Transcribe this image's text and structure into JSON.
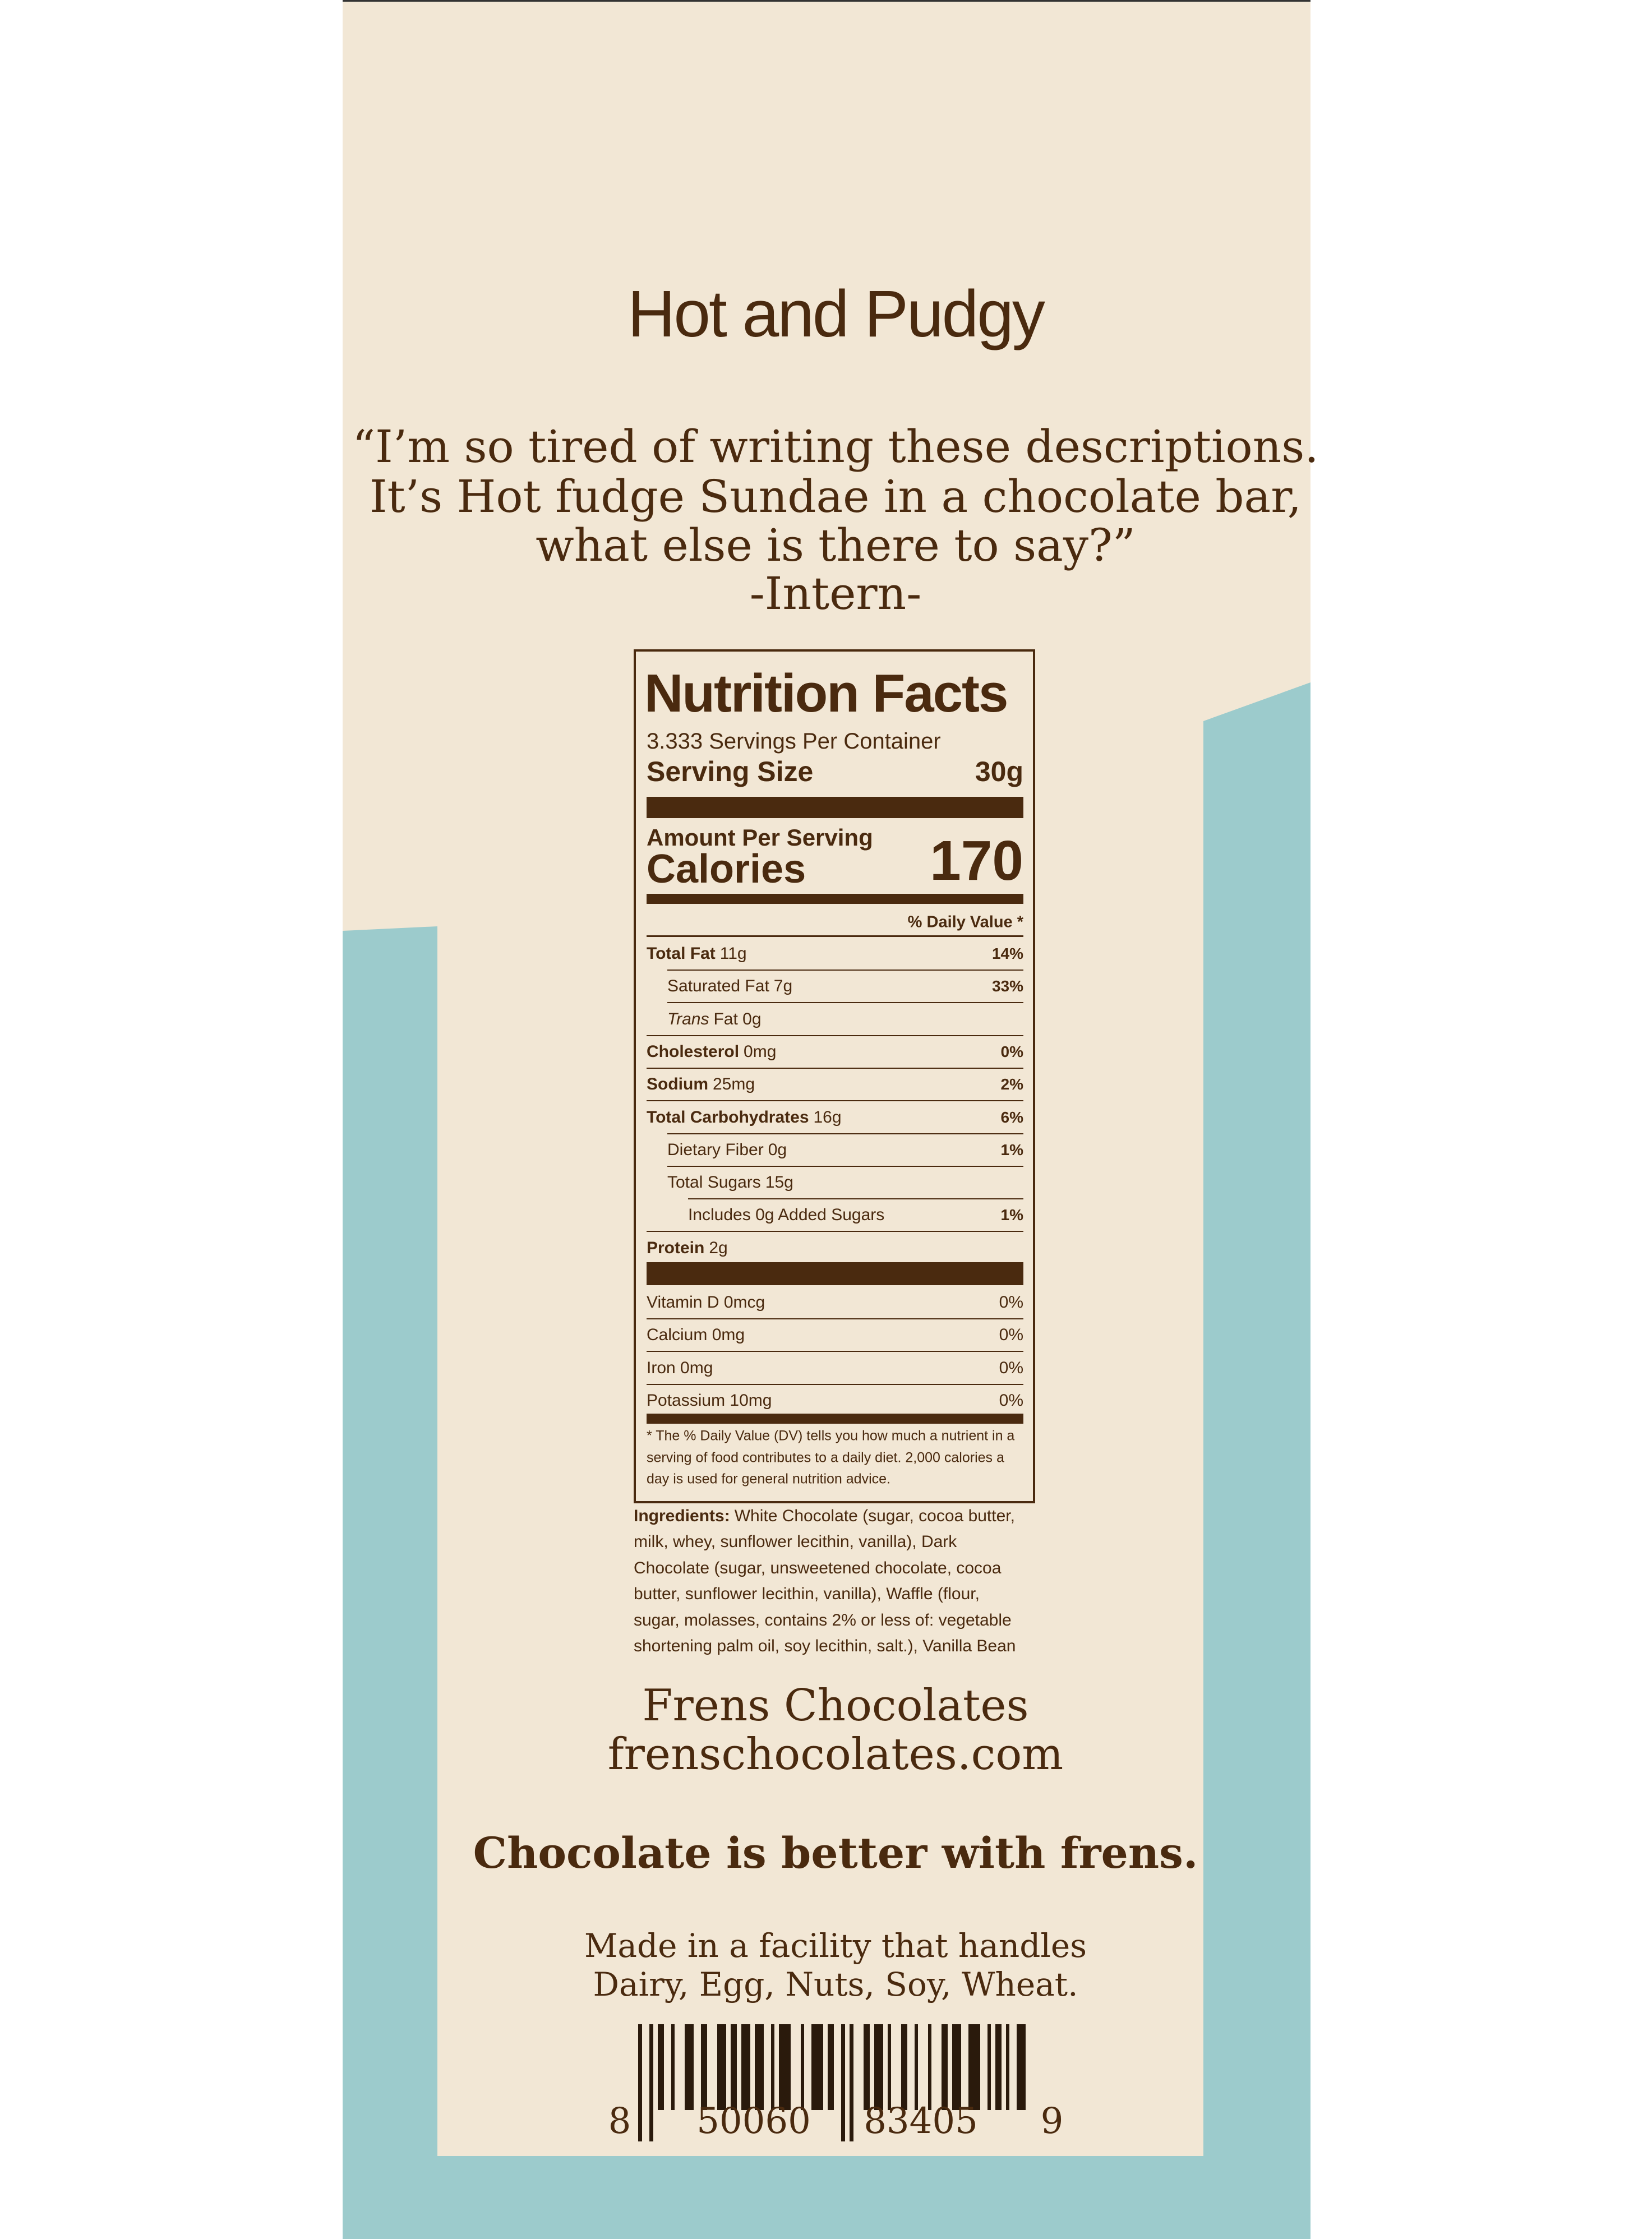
{
  "product_name": "Hot and Pudgy",
  "quote": [
    "“I’m so tired of writing these descriptions.",
    "It’s Hot fudge Sundae in a chocolate bar,",
    "what else is there to say?”",
    "-Intern-"
  ],
  "nutrition": {
    "title": "Nutrition Facts",
    "servings": "3.333 Servings Per Container",
    "serving_size": {
      "label": "Serving Size",
      "value": "30g"
    },
    "amount_per_serving": "Amount Per Serving",
    "calories": {
      "label": "Calories",
      "value": 170
    },
    "dv_header": "% Daily Value *",
    "rows": [
      {
        "name": "Total Fat",
        "amount": "11g",
        "dv": "14%"
      },
      {
        "name": "Saturated Fat",
        "amount": "7g",
        "dv": "33%"
      },
      {
        "name": "Trans",
        "amount": "Fat 0g",
        "dv": null
      },
      {
        "name": "Cholesterol",
        "amount": "0mg",
        "dv": "0%"
      },
      {
        "name": "Sodium",
        "amount": "25mg",
        "dv": "2%"
      },
      {
        "name": "Total Carbohydrates",
        "amount": "16g",
        "dv": "6%"
      },
      {
        "name": "Dietary Fiber",
        "amount": "0g",
        "dv": "1%"
      },
      {
        "name": "Total Sugars",
        "amount": "15g",
        "dv": null
      },
      {
        "name": "Includes 0g Added Sugars",
        "amount": null,
        "dv": "1%"
      },
      {
        "name": "Protein",
        "amount": "2g",
        "dv": null
      }
    ],
    "vitamins": [
      {
        "label": "Vitamin D 0mcg",
        "dv": "0%"
      },
      {
        "label": "Calcium 0mg",
        "dv": "0%"
      },
      {
        "label": "Iron 0mg",
        "dv": "0%"
      },
      {
        "label": "Potassium 10mg",
        "dv": "0%"
      }
    ],
    "footnote": [
      "* The % Daily Value (DV) tells you how much a nutrient in a",
      "serving of food contributes to a daily diet. 2,000 calories a",
      "day is used for general nutrition advice."
    ]
  },
  "ingredients": {
    "label": "Ingredients:",
    "lines": [
      "White Chocolate (sugar, cocoa butter,",
      "milk, whey, sunflower lecithin, vanilla), Dark",
      "Chocolate (sugar, unsweetened chocolate, cocoa",
      "butter, sunflower lecithin, vanilla), Waffle (flour,",
      "sugar, molasses, contains 2% or less of: vegetable",
      "shortening palm oil, soy lecithin, salt.), Vanilla Bean"
    ]
  },
  "brand": [
    "Frens Chocolates",
    "frenschocolates.com"
  ],
  "tagline": "Chocolate is better with frens.",
  "allergens": [
    "Made in a facility that handles",
    "Dairy, Egg, Nuts, Soy, Wheat."
  ],
  "barcode_digits": [
    "8",
    "50060",
    "83405",
    "9"
  ]
}
